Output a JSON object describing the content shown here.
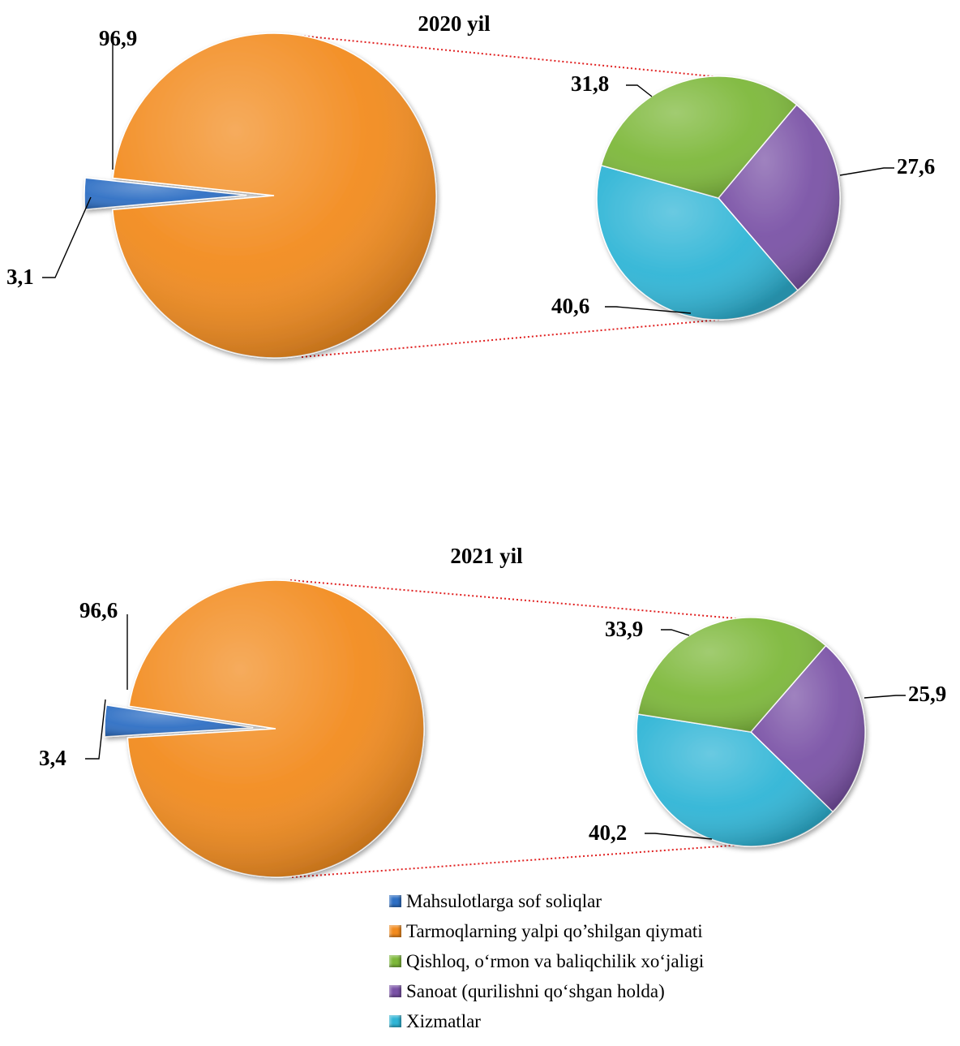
{
  "colors": {
    "taxes": "#2e6fc4",
    "value_added": "#f28b1e",
    "agriculture": "#7db83a",
    "industry": "#7a52a6",
    "services": "#2fb5d6",
    "connector": "#e02020"
  },
  "chart_data": [
    {
      "type": "pie",
      "title": "2020 yil",
      "main_pie": {
        "slices": [
          {
            "name": "Mahsulotlarga sof soliqlar",
            "value": 3.1,
            "label": "3,1",
            "exploded": true
          },
          {
            "name": "Tarmoqlarning yalpi qo’shilgan qiymati",
            "value": 96.9,
            "label": "96,9"
          }
        ]
      },
      "breakdown_pie": {
        "of_slice": "Tarmoqlarning yalpi qo’shilgan qiymati",
        "slices": [
          {
            "name": "Qishloq, o‘rmon va baliqchilik xo‘jaligi",
            "value": 31.8,
            "label": "31,8"
          },
          {
            "name": "Sanoat (qurilishni qo‘shgan holda)",
            "value": 27.6,
            "label": "27,6"
          },
          {
            "name": "Xizmatlar",
            "value": 40.6,
            "label": "40,6"
          }
        ]
      }
    },
    {
      "type": "pie",
      "title": "2021 yil",
      "main_pie": {
        "slices": [
          {
            "name": "Mahsulotlarga sof soliqlar",
            "value": 3.4,
            "label": "3,4",
            "exploded": true
          },
          {
            "name": "Tarmoqlarning yalpi qo’shilgan qiymati",
            "value": 96.6,
            "label": "96,6"
          }
        ]
      },
      "breakdown_pie": {
        "of_slice": "Tarmoqlarning yalpi qo’shilgan qiymati",
        "slices": [
          {
            "name": "Qishloq, o‘rmon va baliqchilik xo‘jaligi",
            "value": 33.9,
            "label": "33,9"
          },
          {
            "name": "Sanoat (qurilishni qo‘shgan holda)",
            "value": 25.9,
            "label": "25,9"
          },
          {
            "name": "Xizmatlar",
            "value": 40.2,
            "label": "40,2"
          }
        ]
      }
    }
  ],
  "legend": {
    "placement": "bottom",
    "items": [
      {
        "label": "Mahsulotlarga sof soliqlar",
        "color_key": "taxes"
      },
      {
        "label": "Tarmoqlarning yalpi qo’shilgan qiymati",
        "color_key": "value_added"
      },
      {
        "label": "Qishloq, o‘rmon va baliqchilik xo‘jaligi",
        "color_key": "agriculture"
      },
      {
        "label": "Sanoat (qurilishni qo‘shgan holda)",
        "color_key": "industry"
      },
      {
        "label": "Xizmatlar",
        "color_key": "services"
      }
    ]
  }
}
